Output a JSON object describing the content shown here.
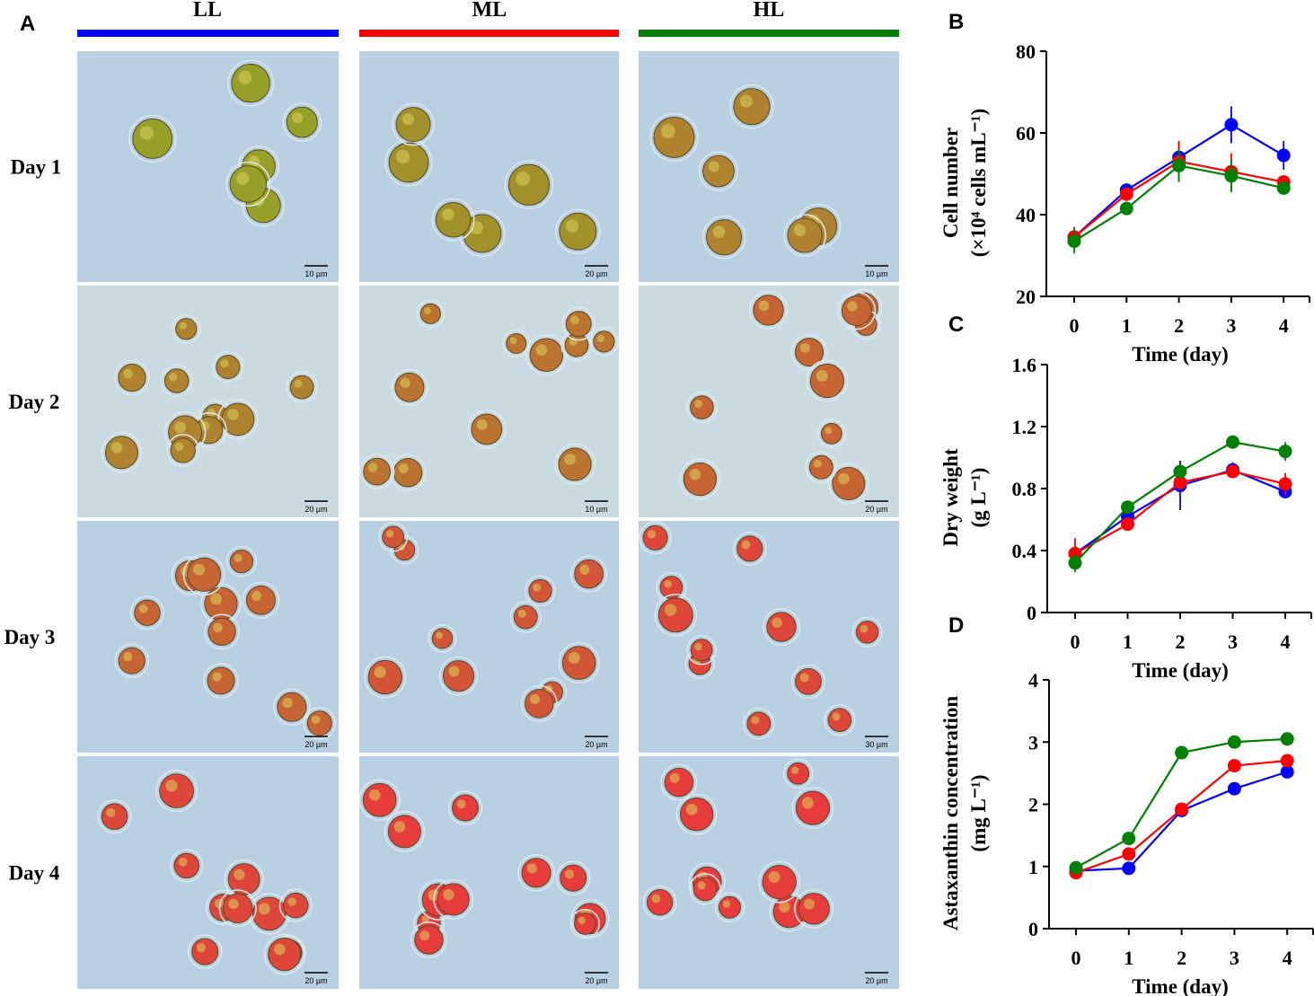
{
  "figure": {
    "panel_a_letter": "A",
    "conditions": [
      {
        "label": "LL",
        "color": "#0000ff"
      },
      {
        "label": "ML",
        "color": "#ff0000"
      },
      {
        "label": "HL",
        "color": "#008000"
      }
    ],
    "days": [
      "Day 1",
      "Day 2",
      "Day 3",
      "Day 4"
    ],
    "scale_bars": [
      [
        "10 µm",
        "20 µm",
        "10 µm"
      ],
      [
        "20 µm",
        "10 µm",
        "20 µm"
      ],
      [
        "20 µm",
        "20 µm",
        "30 µm"
      ],
      [
        "20 µm",
        "20 µm",
        "20 µm"
      ]
    ]
  },
  "chart_data": [
    {
      "panel": "B",
      "type": "line",
      "xlabel": "Time (day)",
      "ylabel_line1": "Cell number",
      "ylabel_line2": "(×10⁴ cells mL⁻¹)",
      "x": [
        0,
        1,
        2,
        3,
        4
      ],
      "xticks": [
        "0",
        "1",
        "2",
        "3",
        "4"
      ],
      "ylim": [
        20,
        80
      ],
      "yticks": [
        20,
        40,
        60,
        80
      ],
      "series": [
        {
          "name": "LL",
          "color": "#0000ff",
          "values": [
            34.5,
            46,
            54,
            62,
            54.5
          ],
          "err": [
            2,
            1.5,
            4,
            4.5,
            3.5
          ]
        },
        {
          "name": "ML",
          "color": "#ff0000",
          "values": [
            34.5,
            45,
            53,
            50.5,
            48
          ],
          "err": [
            2.5,
            1.5,
            5,
            4.5,
            1.5
          ]
        },
        {
          "name": "HL",
          "color": "#008000",
          "values": [
            33.5,
            41.5,
            52,
            49.5,
            46.5
          ],
          "err": [
            3,
            1,
            4,
            4,
            1.5
          ]
        }
      ]
    },
    {
      "panel": "C",
      "type": "line",
      "xlabel": "Time (day)",
      "ylabel_line1": "Dry weight",
      "ylabel_line2": "(g L⁻¹)",
      "x": [
        0,
        1,
        2,
        3,
        4
      ],
      "xticks": [
        "0",
        "1",
        "2",
        "3",
        "4"
      ],
      "ylim": [
        0,
        1.6
      ],
      "yticks": [
        0,
        0.4,
        0.8,
        1.2,
        1.6
      ],
      "series": [
        {
          "name": "LL",
          "color": "#0000ff",
          "values": [
            0.38,
            0.62,
            0.82,
            0.92,
            0.78
          ],
          "err": [
            0.05,
            0.04,
            0.16,
            0.05,
            0.03
          ]
        },
        {
          "name": "ML",
          "color": "#ff0000",
          "values": [
            0.38,
            0.57,
            0.84,
            0.91,
            0.83
          ],
          "err": [
            0.1,
            0.03,
            0.05,
            0.03,
            0.07
          ]
        },
        {
          "name": "HL",
          "color": "#008000",
          "values": [
            0.32,
            0.68,
            0.91,
            1.1,
            1.04
          ],
          "err": [
            0.06,
            0.03,
            0.03,
            0.03,
            0.06
          ]
        }
      ]
    },
    {
      "panel": "D",
      "type": "line",
      "xlabel": "Time (day)",
      "ylabel_line1": "Astaxanthin concentration",
      "ylabel_line2": "(mg L⁻¹)",
      "x": [
        0,
        1,
        2,
        3,
        4
      ],
      "xticks": [
        "0",
        "1",
        "2",
        "3",
        "4"
      ],
      "ylim": [
        0,
        4
      ],
      "yticks": [
        0,
        1,
        2,
        3,
        4
      ],
      "series": [
        {
          "name": "LL",
          "color": "#0000ff",
          "values": [
            0.93,
            0.97,
            1.9,
            2.25,
            2.52
          ],
          "err": [
            0,
            0,
            0,
            0,
            0
          ]
        },
        {
          "name": "ML",
          "color": "#ff0000",
          "values": [
            0.9,
            1.2,
            1.92,
            2.62,
            2.7
          ],
          "err": [
            0,
            0,
            0,
            0,
            0
          ]
        },
        {
          "name": "HL",
          "color": "#008000",
          "values": [
            0.98,
            1.45,
            2.83,
            3.0,
            3.05
          ],
          "err": [
            0,
            0,
            0,
            0,
            0
          ]
        }
      ]
    }
  ]
}
